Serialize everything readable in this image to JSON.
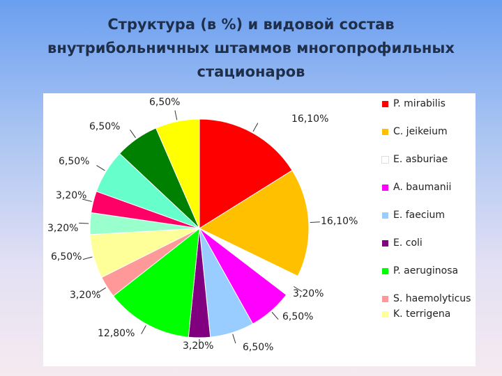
{
  "title": {
    "line1": "Структура (в %) и видовой состав",
    "line2": "внутрибольничных штаммов многопрофильных",
    "line3": "стационаров"
  },
  "chart_data": {
    "type": "pie",
    "title": "Структура (в %) и видовой состав внутрибольничных штаммов многопрофильных стационаров",
    "slices": [
      {
        "label": "16,10%",
        "value": 16.1,
        "color": "#ff0000",
        "legend": "P. mirabilis"
      },
      {
        "label": "16,10%",
        "value": 16.1,
        "color": "#ffc000",
        "legend": "C. jeikeium"
      },
      {
        "label": "3,20%",
        "value": 3.2,
        "color": "#ffffff",
        "legend": "E. asburiae"
      },
      {
        "label": "6,50%",
        "value": 6.5,
        "color": "#ff00ff",
        "legend": "A. baumanii"
      },
      {
        "label": "6,50%",
        "value": 6.5,
        "color": "#99ccff",
        "legend": "E. faecium"
      },
      {
        "label": "3,20%",
        "value": 3.2,
        "color": "#800080",
        "legend": "E. coli"
      },
      {
        "label": "12,80%",
        "value": 12.8,
        "color": "#00ff00",
        "legend": "P. aeruginosa"
      },
      {
        "label": "3,20%",
        "value": 3.2,
        "color": "#ff9999",
        "legend": "S. haemolyticus"
      },
      {
        "label": "6,50%",
        "value": 6.5,
        "color": "#ffff99",
        "legend": "K. terrigena"
      },
      {
        "label": "3,20%",
        "value": 3.2,
        "color": "#99ffcc",
        "legend": ""
      },
      {
        "label": "3,20%",
        "value": 3.2,
        "color": "#ff0066",
        "legend": ""
      },
      {
        "label": "6,50%",
        "value": 6.5,
        "color": "#66ffcc",
        "legend": ""
      },
      {
        "label": "6,50%",
        "value": 6.5,
        "color": "#008000",
        "legend": ""
      },
      {
        "label": "6,50%",
        "value": 6.5,
        "color": "#ffff00",
        "legend": ""
      }
    ],
    "legend_position": "right"
  }
}
